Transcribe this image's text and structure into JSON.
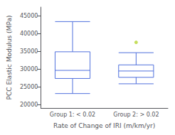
{
  "chart_data": {
    "type": "box",
    "xlabel": "Rate of Change of IRI (m/km/yr)",
    "ylabel": "PCC Elastic Modulus (MPa)",
    "categories": [
      "Group 1: < 0.02",
      "Group 2: > 0.02"
    ],
    "boxes": [
      {
        "whisker_low": 23081,
        "q1": 27344,
        "median": 29627,
        "q3": 34880,
        "whisker_high": 43407,
        "outliers": []
      },
      {
        "whisker_low": 25837,
        "q1": 27663,
        "median": 29454,
        "q3": 31177,
        "whisker_high": 34622,
        "outliers": [
          37551
        ]
      }
    ],
    "ylim": [
      19000,
      47500
    ],
    "yticks": [
      20000,
      25000,
      30000,
      35000,
      40000,
      45000
    ],
    "grid": false
  }
}
